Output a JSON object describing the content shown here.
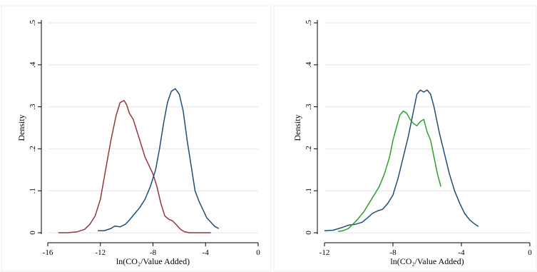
{
  "chart_data": [
    {
      "type": "line",
      "title": "",
      "xlabel": "ln(CO₂/Value Added)",
      "ylabel": "Density",
      "xlim": [
        -16,
        0
      ],
      "ylim": [
        0,
        0.5
      ],
      "xticks": [
        -16,
        -12,
        -8,
        -4,
        0
      ],
      "yticks": [
        0,
        0.1,
        0.2,
        0.3,
        0.4,
        0.5
      ],
      "xtick_labels": [
        "-16",
        "-12",
        "-8",
        "-4",
        "0"
      ],
      "ytick_labels": [
        "0",
        ".1",
        ".2",
        ".3",
        ".4",
        ".5"
      ],
      "grid": "horizontal",
      "legend": "none",
      "series": [
        {
          "color": "#8e3a3a",
          "x": [
            -15.2,
            -14.5,
            -13.8,
            -13.2,
            -12.8,
            -12.4,
            -12.0,
            -11.6,
            -11.2,
            -10.8,
            -10.5,
            -10.2,
            -10.0,
            -9.8,
            -9.5,
            -9.2,
            -8.9,
            -8.6,
            -8.3,
            -8.0,
            -7.7,
            -7.4,
            -7.1,
            -6.8,
            -6.5,
            -6.2,
            -5.9,
            -5.6,
            -5.2,
            -4.8,
            -4.4,
            -4.0,
            -3.6
          ],
          "y": [
            0.0,
            0.0,
            0.002,
            0.008,
            0.02,
            0.04,
            0.08,
            0.15,
            0.22,
            0.28,
            0.31,
            0.315,
            0.305,
            0.285,
            0.27,
            0.24,
            0.21,
            0.18,
            0.16,
            0.14,
            0.11,
            0.07,
            0.04,
            0.032,
            0.028,
            0.018,
            0.008,
            0.002,
            0.0,
            0.0,
            0.0,
            0.0,
            0.0
          ]
        },
        {
          "color": "#1f4e79",
          "x": [
            -12.2,
            -11.7,
            -11.2,
            -10.9,
            -10.5,
            -10.1,
            -9.8,
            -9.4,
            -9.0,
            -8.6,
            -8.2,
            -7.8,
            -7.5,
            -7.2,
            -6.9,
            -6.6,
            -6.3,
            -6.0,
            -5.7,
            -5.4,
            -5.1,
            -4.8,
            -4.5,
            -4.2,
            -3.9,
            -3.6,
            -3.3,
            -3.0
          ],
          "y": [
            0.005,
            0.005,
            0.01,
            0.016,
            0.014,
            0.02,
            0.03,
            0.045,
            0.06,
            0.08,
            0.11,
            0.15,
            0.2,
            0.26,
            0.31,
            0.337,
            0.343,
            0.33,
            0.29,
            0.22,
            0.16,
            0.1,
            0.075,
            0.055,
            0.035,
            0.025,
            0.015,
            0.01
          ]
        }
      ]
    },
    {
      "type": "line",
      "title": "",
      "xlabel": "ln(CO₂/Value Added)",
      "ylabel": "Density",
      "xlim": [
        -12,
        0
      ],
      "ylim": [
        0,
        0.5
      ],
      "xticks": [
        -12,
        -8,
        -4,
        0
      ],
      "yticks": [
        0,
        0.1,
        0.2,
        0.3,
        0.4,
        0.5
      ],
      "xtick_labels": [
        "-12",
        "-8",
        "-4",
        "0"
      ],
      "ytick_labels": [
        "0",
        ".1",
        ".2",
        ".3",
        ".4",
        ".5"
      ],
      "grid": "horizontal",
      "legend": "none",
      "series": [
        {
          "color": "#1f4e79",
          "x": [
            -12.0,
            -11.5,
            -11.0,
            -10.6,
            -10.2,
            -9.8,
            -9.5,
            -9.2,
            -8.9,
            -8.6,
            -8.3,
            -8.0,
            -7.7,
            -7.4,
            -7.1,
            -6.8,
            -6.6,
            -6.4,
            -6.2,
            -6.0,
            -5.8,
            -5.6,
            -5.3,
            -5.0,
            -4.7,
            -4.4,
            -4.1,
            -3.8,
            -3.5,
            -3.2,
            -3.0
          ],
          "y": [
            0.005,
            0.006,
            0.012,
            0.018,
            0.02,
            0.025,
            0.035,
            0.046,
            0.052,
            0.056,
            0.07,
            0.09,
            0.13,
            0.18,
            0.23,
            0.29,
            0.33,
            0.34,
            0.335,
            0.34,
            0.33,
            0.3,
            0.24,
            0.19,
            0.14,
            0.1,
            0.07,
            0.045,
            0.03,
            0.02,
            0.015
          ]
        },
        {
          "color": "#2e9e2e",
          "x": [
            -11.2,
            -10.9,
            -10.6,
            -10.3,
            -10.0,
            -9.7,
            -9.4,
            -9.1,
            -8.8,
            -8.5,
            -8.2,
            -8.0,
            -7.8,
            -7.6,
            -7.4,
            -7.2,
            -7.0,
            -6.8,
            -6.6,
            -6.4,
            -6.2,
            -6.0,
            -5.8,
            -5.6,
            -5.4,
            -5.2
          ],
          "y": [
            0.003,
            0.005,
            0.01,
            0.022,
            0.035,
            0.05,
            0.07,
            0.09,
            0.11,
            0.14,
            0.18,
            0.22,
            0.25,
            0.28,
            0.29,
            0.285,
            0.27,
            0.26,
            0.255,
            0.265,
            0.27,
            0.24,
            0.22,
            0.18,
            0.14,
            0.11
          ]
        }
      ]
    }
  ]
}
